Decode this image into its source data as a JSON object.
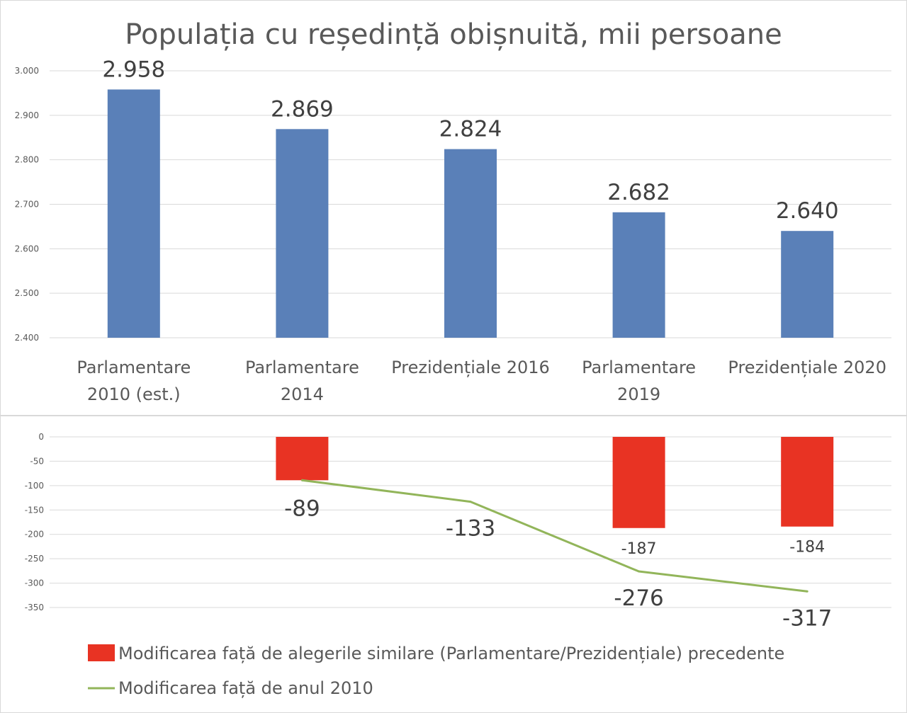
{
  "chart_data": [
    {
      "type": "bar",
      "title": "Populația cu reședință obișnuită, mii persoane",
      "categories": [
        [
          "Parlamentare",
          "2010 (est.)"
        ],
        [
          "Parlamentare",
          "2014"
        ],
        [
          "Prezidențiale  2016"
        ],
        [
          "Parlamentare",
          "2019"
        ],
        [
          "Prezidențiale  2020"
        ]
      ],
      "values": [
        2958,
        2869,
        2824,
        2682,
        2640
      ],
      "value_labels": [
        "2.958",
        "2.869",
        "2.824",
        "2.682",
        "2.640"
      ],
      "ylim": [
        2400,
        3000
      ],
      "yticks": [
        2400,
        2500,
        2600,
        2700,
        2800,
        2900,
        3000
      ],
      "ytick_labels": [
        "2.400",
        "2.500",
        "2.600",
        "2.700",
        "2.800",
        "2.900",
        "3.000"
      ],
      "color": "#5a80b8",
      "grid": true
    },
    {
      "type": "bar+line",
      "ylim": [
        -350,
        0
      ],
      "yticks": [
        0,
        -50,
        -100,
        -150,
        -200,
        -250,
        -300,
        -350
      ],
      "ytick_labels": [
        "0",
        "-50",
        "-100",
        "-150",
        "-200",
        "-250",
        "-300",
        "-350"
      ],
      "grid": true,
      "legend_position": "bottom",
      "series": [
        {
          "name": "Modificarea față de alegerile similare (Parlamentare/Prezidențiale)  precedente",
          "type": "bar",
          "color": "#e83323",
          "points": [
            {
              "index": 1,
              "value": -89,
              "label": "-89",
              "label_size": "large"
            },
            {
              "index": 3,
              "value": -187,
              "label": "-187",
              "label_size": "small"
            },
            {
              "index": 4,
              "value": -184,
              "label": "-184",
              "label_size": "small"
            }
          ]
        },
        {
          "name": "Modificarea față de anul 2010",
          "type": "line",
          "color": "#92b55a",
          "points": [
            {
              "index": 1,
              "value": -89
            },
            {
              "index": 2,
              "value": -133,
              "label": "-133"
            },
            {
              "index": 3,
              "value": -276,
              "label": "-276"
            },
            {
              "index": 4,
              "value": -317,
              "label": "-317"
            }
          ]
        }
      ]
    }
  ]
}
